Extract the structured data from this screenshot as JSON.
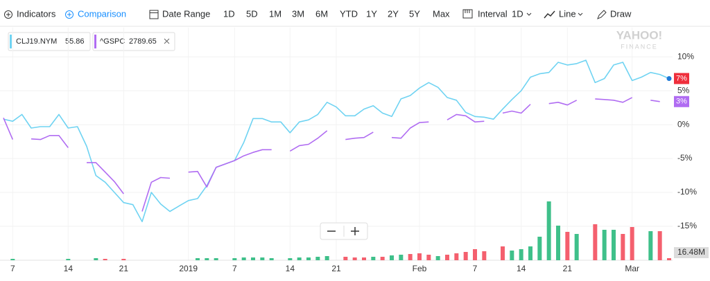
{
  "toolbar": {
    "indicators": "Indicators",
    "comparison": "Comparison",
    "date_range": "Date Range",
    "ranges": [
      "1D",
      "5D",
      "1M",
      "3M",
      "6M",
      "YTD",
      "1Y",
      "2Y",
      "5Y",
      "Max"
    ],
    "interval_label": "Interval",
    "interval": "1D",
    "chart_style": "Line",
    "draw": "Draw"
  },
  "watermark": {
    "brand": "YAHOO!",
    "product": "FINANCE"
  },
  "chart_data": {
    "type": "line",
    "legend": [
      {
        "symbol": "CLJ19.NYM",
        "price": "55.86"
      },
      {
        "symbol": "^GSPC",
        "price": "2789.65"
      }
    ],
    "categories": [
      null,
      "7",
      null,
      null,
      null,
      null,
      null,
      "14",
      null,
      null,
      null,
      null,
      null,
      "21",
      null,
      null,
      null,
      null,
      null,
      null,
      "2019",
      null,
      null,
      null,
      null,
      "7",
      null,
      null,
      null,
      null,
      null,
      "14",
      null,
      null,
      null,
      null,
      "21",
      null,
      null,
      null,
      null,
      null,
      null,
      null,
      null,
      "Feb",
      null,
      null,
      null,
      null,
      null,
      "7",
      null,
      null,
      null,
      null,
      "14",
      null,
      null,
      null,
      null,
      "21",
      null,
      null,
      null,
      null,
      null,
      null,
      "Mar",
      null,
      null,
      null,
      null
    ],
    "series": [
      {
        "name": "CLJ19.NYM",
        "color": "#6fd3f2",
        "end_label": "7%",
        "values": [
          0.8,
          0.5,
          1.5,
          -0.5,
          -0.3,
          -0.3,
          1.5,
          -0.5,
          -0.3,
          -3.2,
          -7.5,
          -8.5,
          -10,
          -11.5,
          -11.8,
          -14.3,
          -10,
          -11.7,
          -12.8,
          -12,
          -11.2,
          -10.9,
          -9,
          -6.3,
          -5.8,
          -5.3,
          -2.6,
          0.9,
          0.9,
          0.4,
          0.4,
          -1.2,
          0.4,
          0.7,
          1.5,
          3.3,
          2.6,
          1.3,
          1.3,
          2.3,
          2.8,
          1.7,
          1.2,
          3.8,
          4.3,
          5.4,
          6.2,
          5.5,
          4,
          3.6,
          1.8,
          1.2,
          1.1,
          0.8,
          2.3,
          3.7,
          5,
          7,
          7.5,
          7.7,
          9.2,
          8.8,
          9,
          9.5,
          6.2,
          6.8,
          8.8,
          9.2,
          6.5,
          7,
          7.7,
          7.4,
          6.8
        ]
      },
      {
        "name": "^GSPC",
        "color": "#b06cf2",
        "end_label": "3%",
        "values": [
          1.0,
          -2.2,
          null,
          -2.1,
          -2.2,
          -1.6,
          -1.6,
          -3.4,
          null,
          -5.6,
          -5.6,
          -7,
          -8.4,
          -10.2,
          null,
          -12.8,
          -8.5,
          -7.8,
          -7.9,
          null,
          -7,
          -6.9,
          -9.2,
          -6.3,
          -5.8,
          -5.3,
          -4.6,
          -4.1,
          -3.7,
          -3.7,
          null,
          -3.9,
          -3.1,
          -2.9,
          -2,
          -0.9,
          null,
          -2.2,
          -2,
          -1.9,
          -1.1,
          null,
          -1.9,
          -2,
          -0.5,
          0.3,
          0.4,
          null,
          0.7,
          1.5,
          1.3,
          0.4,
          0.5,
          null,
          1.7,
          2,
          1.7,
          3,
          null,
          3.1,
          3.3,
          2.9,
          3.6,
          null,
          3.8,
          3.7,
          3.6,
          3.3,
          4,
          null,
          3.6,
          3.4,
          null
        ]
      }
    ],
    "ylim": [
      -20,
      14.3
    ],
    "yticks": [
      {
        "value": 10,
        "label": "10%"
      },
      {
        "value": 5,
        "label": "5%"
      },
      {
        "value": 0,
        "label": "0%"
      },
      {
        "value": -5,
        "label": "-5%"
      },
      {
        "value": -10,
        "label": "-10%"
      },
      {
        "value": -15,
        "label": "-15%"
      }
    ],
    "grid": true,
    "volume": {
      "label": "16.48M",
      "ylim": [
        0,
        100
      ],
      "values": [
        null,
        2,
        null,
        null,
        null,
        null,
        null,
        2,
        null,
        null,
        3,
        2,
        null,
        2,
        null,
        null,
        null,
        null,
        null,
        null,
        null,
        3,
        3,
        3,
        null,
        3,
        4,
        4,
        4,
        3,
        null,
        3,
        4,
        4,
        5,
        6,
        null,
        5,
        4,
        4,
        5,
        5,
        7,
        8,
        9,
        10,
        8,
        6,
        8,
        10,
        12,
        16,
        13,
        null,
        20,
        14,
        16,
        20,
        34,
        85,
        50,
        41,
        38,
        null,
        52,
        44,
        44,
        38,
        48,
        null,
        42,
        42,
        3
      ],
      "colors": [
        null,
        "#3fc08a",
        null,
        null,
        null,
        null,
        null,
        "#3fc08a",
        null,
        null,
        "#3fc08a",
        "#f4606e",
        null,
        "#f4606e",
        null,
        null,
        null,
        null,
        null,
        null,
        null,
        "#3fc08a",
        "#3fc08a",
        "#3fc08a",
        null,
        "#3fc08a",
        "#3fc08a",
        "#3fc08a",
        "#3fc08a",
        "#3fc08a",
        null,
        "#3fc08a",
        "#3fc08a",
        "#3fc08a",
        "#3fc08a",
        "#3fc08a",
        null,
        "#f4606e",
        "#f4606e",
        "#f4606e",
        "#3fc08a",
        "#f4606e",
        "#3fc08a",
        "#3fc08a",
        "#f4606e",
        "#f4606e",
        "#f4606e",
        "#3fc08a",
        "#f4606e",
        "#f4606e",
        "#f4606e",
        "#f4606e",
        "#f4606e",
        null,
        "#f4606e",
        "#3fc08a",
        "#3fc08a",
        "#3fc08a",
        "#3fc08a",
        "#3fc08a",
        "#3fc08a",
        "#f4606e",
        "#3fc08a",
        null,
        "#f4606e",
        "#3fc08a",
        "#3fc08a",
        "#f4606e",
        "#f4606e",
        null,
        "#3fc08a",
        "#f4606e",
        "#f4606e"
      ]
    }
  }
}
